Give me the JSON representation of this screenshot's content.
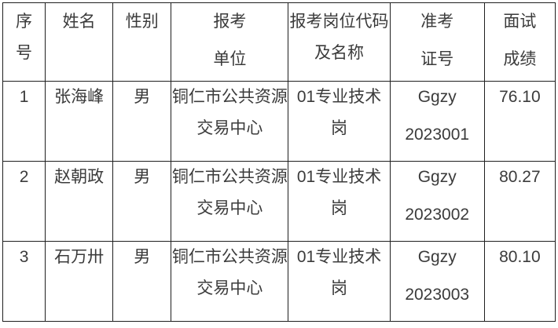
{
  "table": {
    "title": "interview-score-table",
    "text_color": "#3b3b3b",
    "border_color": "#1f1f1f",
    "header": [
      {
        "id": "index",
        "lines": [
          "序",
          "号"
        ],
        "spaced": false
      },
      {
        "id": "name",
        "lines": [
          "姓名"
        ],
        "spaced": false
      },
      {
        "id": "gender",
        "lines": [
          "性别"
        ],
        "spaced": false
      },
      {
        "id": "unit",
        "lines": [
          "报考",
          "单位"
        ],
        "spaced": true
      },
      {
        "id": "post",
        "lines": [
          "报考岗位代码",
          "及名称"
        ],
        "spaced": false
      },
      {
        "id": "ticket",
        "lines": [
          "准考",
          "证号"
        ],
        "spaced": true
      },
      {
        "id": "score",
        "lines": [
          "面试",
          "成绩"
        ],
        "spaced": true
      }
    ],
    "rows": [
      [
        {
          "lines": [
            "1"
          ]
        },
        {
          "lines": [
            "张海峰"
          ]
        },
        {
          "lines": [
            "男"
          ]
        },
        {
          "lines": [
            "铜仁市公共资源",
            "交易中心"
          ]
        },
        {
          "lines": [
            "01专业技术",
            "岗"
          ]
        },
        {
          "lines": [
            "Ggzy",
            "2023001"
          ],
          "spaced": true
        },
        {
          "lines": [
            "76.10"
          ]
        }
      ],
      [
        {
          "lines": [
            "2"
          ]
        },
        {
          "lines": [
            "赵朝政"
          ]
        },
        {
          "lines": [
            "男"
          ]
        },
        {
          "lines": [
            "铜仁市公共资源",
            "交易中心"
          ]
        },
        {
          "lines": [
            "01专业技术",
            "岗"
          ]
        },
        {
          "lines": [
            "Ggzy",
            "2023002"
          ],
          "spaced": true
        },
        {
          "lines": [
            "80.27"
          ]
        }
      ],
      [
        {
          "lines": [
            "3"
          ]
        },
        {
          "lines": [
            "石万卅"
          ]
        },
        {
          "lines": [
            "男"
          ]
        },
        {
          "lines": [
            "铜仁市公共资源",
            "交易中心"
          ]
        },
        {
          "lines": [
            "01专业技术",
            "岗"
          ]
        },
        {
          "lines": [
            "Ggzy",
            "2023003"
          ],
          "spaced": true
        },
        {
          "lines": [
            "80.10"
          ]
        }
      ]
    ]
  }
}
